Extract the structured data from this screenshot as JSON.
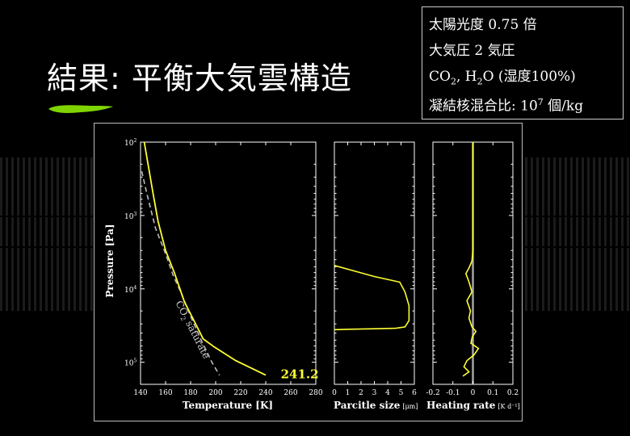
{
  "slide": {
    "title": "結果: 平衡大気雲構造"
  },
  "info_box": {
    "solar": "太陽光度  0.75 倍",
    "pressure": "大気圧 2 気圧",
    "composition": {
      "co": "CO",
      "sub1": "2",
      "comma": ", H",
      "sub2": "2",
      "rest": "O (湿度100%)"
    },
    "nuclei": {
      "prefix": "凝結核混合比: 10",
      "sup": "7",
      "suffix": " 個/kg"
    }
  },
  "colors": {
    "line": "#ffff33",
    "dashed": "#bbbbbb",
    "axis": "#ffffff",
    "background": "#000000",
    "brush": "#7fd400",
    "zero_line": "#aaaaaa"
  },
  "chart_data": [
    {
      "type": "line",
      "panel": "temperature",
      "ylabel": "Pressure [Pa]",
      "ylog": true,
      "ylim": [
        100,
        200000
      ],
      "yticks": [
        {
          "value": 100,
          "base": "10",
          "exp": "2"
        },
        {
          "value": 1000,
          "base": "10",
          "exp": "3"
        },
        {
          "value": 10000,
          "base": "10",
          "exp": "4"
        },
        {
          "value": 100000,
          "base": "10",
          "exp": "5"
        }
      ],
      "xlabel": "Temperature [K]",
      "xlim": [
        140,
        280
      ],
      "xticks": [
        "140",
        "160",
        "180",
        "200",
        "220",
        "240",
        "260",
        "280"
      ],
      "series": [
        {
          "style": "solid",
          "points": [
            [
              143,
              100
            ],
            [
              146,
              200
            ],
            [
              150,
              500
            ],
            [
              154,
              1200
            ],
            [
              160,
              3000
            ],
            [
              167,
              6000
            ],
            [
              175,
              15000
            ],
            [
              184,
              30000
            ],
            [
              190,
              48000
            ],
            [
              199,
              62000
            ],
            [
              216,
              95000
            ],
            [
              240,
              150000
            ]
          ]
        },
        {
          "name": "CO2 saturate",
          "style": "dashed",
          "points": [
            [
              141,
              250
            ],
            [
              145,
              500
            ],
            [
              152,
              1500
            ],
            [
              159,
              3000
            ],
            [
              166,
              6500
            ],
            [
              173,
              12000
            ],
            [
              181,
              26000
            ],
            [
              189,
              52000
            ],
            [
              197,
              100000
            ],
            [
              203,
              150000
            ]
          ]
        }
      ],
      "annotations": [
        {
          "text": "241.2",
          "x": 252,
          "y": 145000
        },
        {
          "text_main": "CO",
          "text_sub": "2",
          "text_rest": " saturate",
          "along": "CO2 saturate"
        }
      ]
    },
    {
      "type": "line",
      "panel": "particle_size",
      "xlabel": "Parcitle size",
      "xunit": "[μm]",
      "xlim": [
        0,
        6
      ],
      "xticks": [
        "0",
        "1",
        "2",
        "3",
        "4",
        "5",
        "6"
      ],
      "ylog": true,
      "ylim": [
        100,
        200000
      ],
      "series": [
        {
          "style": "solid",
          "points": [
            [
              0,
              4800
            ],
            [
              1,
              5400
            ],
            [
              3,
              6800
            ],
            [
              4.9,
              8100
            ],
            [
              5.3,
              11000
            ],
            [
              5.6,
              17000
            ],
            [
              5.6,
              27000
            ],
            [
              5.3,
              33000
            ],
            [
              4.6,
              34500
            ],
            [
              3,
              35000
            ],
            [
              1,
              35500
            ],
            [
              0.05,
              36000
            ],
            [
              0,
              36000
            ]
          ]
        }
      ]
    },
    {
      "type": "line",
      "panel": "heating_rate",
      "xlabel": "Heating rate",
      "xunit": "[K d⁻¹]",
      "xlim": [
        -0.2,
        0.2
      ],
      "xticks": [
        "-0.2",
        "-0.1",
        "0",
        "0.1",
        "0.2"
      ],
      "ylog": true,
      "ylim": [
        100,
        200000
      ],
      "series": [
        {
          "style": "solid",
          "points": [
            [
              0,
              100
            ],
            [
              0,
              3000
            ],
            [
              -0.005,
              4200
            ],
            [
              -0.02,
              5200
            ],
            [
              -0.035,
              6200
            ],
            [
              -0.02,
              8000
            ],
            [
              -0.005,
              11000
            ],
            [
              -0.03,
              14500
            ],
            [
              -0.012,
              20000
            ],
            [
              -0.02,
              25000
            ],
            [
              -0.005,
              33000
            ],
            [
              0.015,
              38000
            ],
            [
              -0.003,
              45000
            ],
            [
              -0.01,
              55000
            ],
            [
              0.028,
              65000
            ],
            [
              0.005,
              80000
            ],
            [
              -0.03,
              95000
            ],
            [
              -0.045,
              115000
            ],
            [
              -0.02,
              135000
            ],
            [
              -0.05,
              155000
            ]
          ]
        }
      ]
    }
  ]
}
